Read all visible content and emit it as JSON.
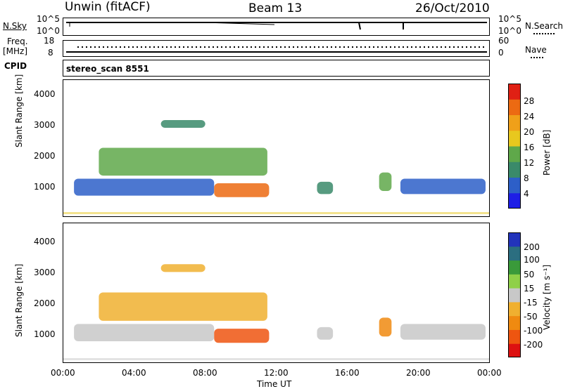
{
  "header": {
    "station": "Unwin (fitACF)",
    "beam": "Beam 13",
    "date": "26/Oct/2010"
  },
  "top_panels": {
    "nsky_label": "N.Sky",
    "nsky_ticks": [
      "10^5",
      "10^0"
    ],
    "nsearch_label": "N.Search",
    "nsearch_ticks": [
      "10^5",
      "10^0"
    ],
    "freq_label": "Freq.",
    "freq_unit": "[MHz]",
    "freq_ticks": [
      "18",
      "8"
    ],
    "nave_label": "Nave",
    "nave_ticks": [
      "60",
      "0"
    ],
    "cpid_label": "CPID",
    "cpid_value": "stereo_scan 8551"
  },
  "chart_data": [
    {
      "type": "heatmap",
      "name": "power",
      "ylabel": "Slant Range [km]",
      "ylim": [
        180,
        4600
      ],
      "yticks": [
        "4000",
        "3000",
        "2000",
        "1000"
      ],
      "colorbar_label": "Power [dB]",
      "colorbar_ticks": [
        "28",
        "24",
        "20",
        "16",
        "12",
        "8",
        "4"
      ],
      "colors": [
        "#1e1ee6",
        "#2d5fc8",
        "#3a8a6a",
        "#5fa84a",
        "#e8c81e",
        "#f0a019",
        "#ec6a12",
        "#e02014"
      ],
      "regions": [
        {
          "x": [
            0.6,
            8.5
          ],
          "y": [
            850,
            1400
          ],
          "level": 1
        },
        {
          "x": [
            2.0,
            11.5
          ],
          "y": [
            1500,
            2400
          ],
          "level": 3
        },
        {
          "x": [
            5.5,
            8.0
          ],
          "y": [
            3050,
            3300
          ],
          "level": 2
        },
        {
          "x": [
            8.5,
            11.6
          ],
          "y": [
            800,
            1250
          ],
          "level": 6
        },
        {
          "x": [
            14.3,
            15.2
          ],
          "y": [
            900,
            1300
          ],
          "level": 2
        },
        {
          "x": [
            17.8,
            18.5
          ],
          "y": [
            1000,
            1600
          ],
          "level": 3
        },
        {
          "x": [
            19.0,
            23.8
          ],
          "y": [
            900,
            1400
          ],
          "level": 1
        }
      ]
    },
    {
      "type": "heatmap",
      "name": "velocity",
      "ylabel": "Slant Range [km]",
      "xlabel": "Time UT",
      "xticks": [
        "00:00",
        "04:00",
        "08:00",
        "12:00",
        "16:00",
        "20:00",
        "00:00"
      ],
      "ylim": [
        180,
        4600
      ],
      "yticks": [
        "4000",
        "3000",
        "2000",
        "1000"
      ],
      "colorbar_label": "Velocity [m s⁻¹]",
      "colorbar_ticks": [
        "200",
        "100",
        "50",
        "15",
        "-15",
        "-50",
        "-100",
        "-200"
      ],
      "colors": [
        "#2233bb",
        "#2b6e80",
        "#3a9a3a",
        "#8fd048",
        "#c8c8c8",
        "#f0b030",
        "#f08a10",
        "#ee5510",
        "#dd1111"
      ],
      "regions": [
        {
          "x": [
            0.6,
            8.5
          ],
          "y": [
            850,
            1400
          ],
          "level": 4
        },
        {
          "x": [
            2.0,
            11.5
          ],
          "y": [
            1500,
            2400
          ],
          "level": 5
        },
        {
          "x": [
            5.5,
            8.0
          ],
          "y": [
            3050,
            3300
          ],
          "level": 5
        },
        {
          "x": [
            8.5,
            11.6
          ],
          "y": [
            800,
            1250
          ],
          "level": 7
        },
        {
          "x": [
            14.3,
            15.2
          ],
          "y": [
            900,
            1300
          ],
          "level": 4
        },
        {
          "x": [
            17.8,
            18.5
          ],
          "y": [
            1000,
            1600
          ],
          "level": 6
        },
        {
          "x": [
            19.0,
            23.8
          ],
          "y": [
            900,
            1400
          ],
          "level": 4
        }
      ]
    }
  ]
}
